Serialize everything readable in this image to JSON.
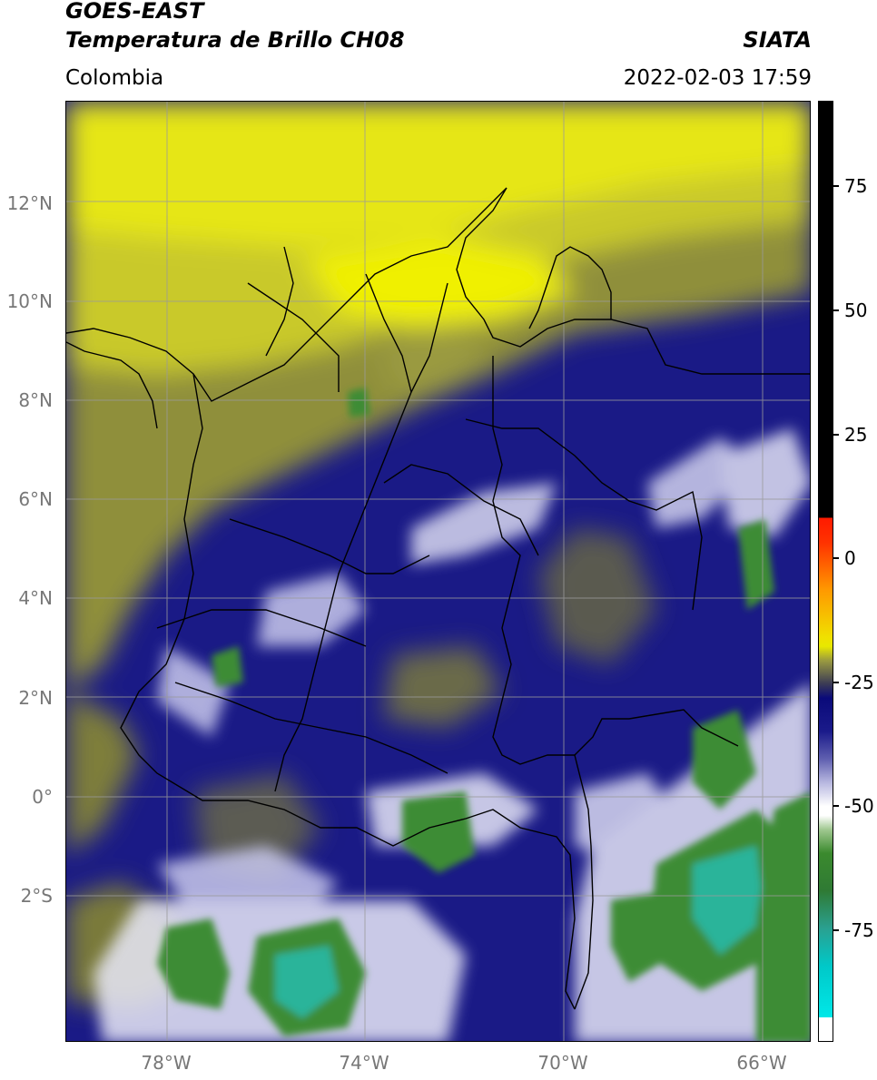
{
  "header": {
    "satellite": "GOES-EAST",
    "product": "Temperatura de Brillo CH08",
    "brand": "SIATA",
    "region": "Colombia",
    "timestamp": "2022-02-03 17:59"
  },
  "map": {
    "lat_labels": [
      "12°N",
      "10°N",
      "8°N",
      "6°N",
      "4°N",
      "2°N",
      "0°",
      "2°S"
    ],
    "lon_labels": [
      "78°W",
      "74°W",
      "70°W",
      "66°W"
    ],
    "extent": {
      "lon_min": -80,
      "lon_max": -65,
      "lat_min": -5,
      "lat_max": 14
    },
    "graticule_color": "#9a9a9a",
    "border_color": "#000000"
  },
  "colorbar": {
    "labels": [
      "75",
      "50",
      "25",
      "0",
      "-25",
      "-50",
      "-75"
    ],
    "colors": {
      "black": "#000000",
      "red": "#ff2a00",
      "orange": "#ff9900",
      "yellow": "#f0f000",
      "olive": "#9a9a3a",
      "navy": "#0a0a7a",
      "white": "#ffffff",
      "green": "#3b8a2e",
      "cyan": "#00e5e5"
    }
  }
}
